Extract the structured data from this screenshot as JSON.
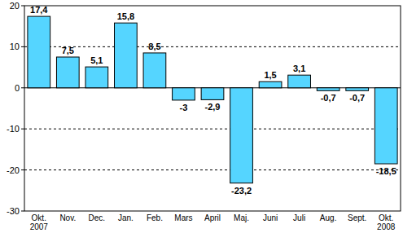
{
  "chart_data": {
    "type": "bar",
    "categories": [
      "Okt. 2007",
      "Nov.",
      "Dec.",
      "Jan.",
      "Feb.",
      "Mars",
      "April",
      "Maj.",
      "Juni",
      "Juli",
      "Aug.",
      "Sept.",
      "Okt. 2008"
    ],
    "values": [
      17.4,
      7.5,
      5.1,
      15.8,
      8.5,
      -3,
      -2.9,
      -23.2,
      1.5,
      3.1,
      -0.7,
      -0.7,
      -18.5
    ],
    "value_labels": [
      "17,4",
      "7,5",
      "5,1",
      "15,8",
      "8,5",
      "-3",
      "-2,9",
      "-23,2",
      "1,5",
      "3,1",
      "-0,7",
      "-0,7",
      "-18,5"
    ],
    "color": "#55d5ff",
    "ylim": [
      -30,
      20
    ],
    "yticks": [
      -30,
      -20,
      -10,
      0,
      10,
      20
    ],
    "grid": true,
    "data_labels": true
  }
}
